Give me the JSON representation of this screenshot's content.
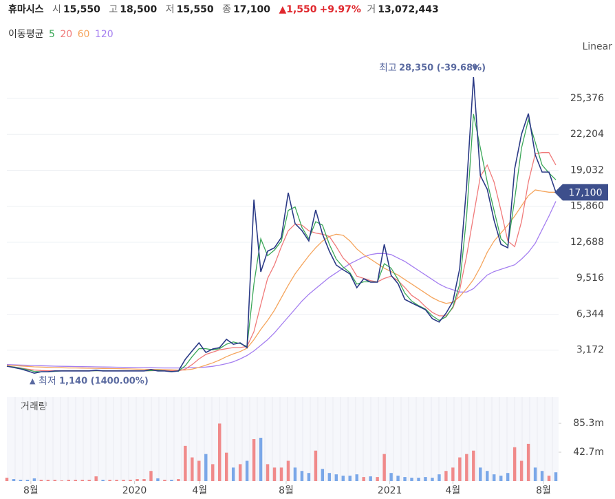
{
  "header": {
    "name": "휴마시스",
    "items": [
      {
        "label": "시",
        "value": "15,550"
      },
      {
        "label": "고",
        "value": "18,500"
      },
      {
        "label": "저",
        "value": "15,550"
      },
      {
        "label": "종",
        "value": "17,100"
      }
    ],
    "change": "▲1,550",
    "change_pct": "+9.97%",
    "volume_label": "거",
    "volume": "13,072,443"
  },
  "chart_data": [
    {
      "type": "line",
      "ma_legend_title": "이동평균",
      "scale_label": "Linear",
      "xlim": [
        0,
        80
      ],
      "xticks": [
        {
          "value": 3.5,
          "label": "8월"
        },
        {
          "value": 18.6,
          "label": "2020"
        },
        {
          "value": 28.1,
          "label": "4월"
        },
        {
          "value": 40.7,
          "label": "8월"
        },
        {
          "value": 55.8,
          "label": "2021"
        },
        {
          "value": 65,
          "label": "4월"
        },
        {
          "value": 78.2,
          "label": "8월"
        }
      ],
      "ylim": [
        0,
        29200
      ],
      "yticks": [
        {
          "value": 3172,
          "label": "3,172"
        },
        {
          "value": 6344,
          "label": "6,344"
        },
        {
          "value": 9516,
          "label": "9,516"
        },
        {
          "value": 12688,
          "label": "12,688"
        },
        {
          "value": 15860,
          "label": "15,860"
        },
        {
          "value": 19032,
          "label": "19,032"
        },
        {
          "value": 22204,
          "label": "22,204"
        },
        {
          "value": 25376,
          "label": "25,376"
        }
      ],
      "grid": true,
      "high_label": "최고",
      "high_text": "28,350 (-39.68%)",
      "high_marker": "▼",
      "low_marker": "▲",
      "low_label": "최저",
      "low_text": "1,140 (1400.00%)",
      "last_value_label": "17,100",
      "series": [
        {
          "color": "#2b3a86",
          "values": [
            1760,
            1640,
            1520,
            1340,
            1140,
            1270,
            1270,
            1340,
            1340,
            1340,
            1340,
            1340,
            1340,
            1400,
            1340,
            1340,
            1340,
            1340,
            1340,
            1340,
            1340,
            1460,
            1340,
            1340,
            1270,
            1340,
            2370,
            3100,
            3820,
            2970,
            3280,
            3400,
            4130,
            3700,
            3820,
            3400,
            16450,
            10080,
            11900,
            12200,
            13110,
            17060,
            14330,
            13720,
            12810,
            15540,
            13410,
            11900,
            10680,
            10260,
            9890,
            8680,
            9470,
            9170,
            9170,
            12500,
            9770,
            9040,
            7650,
            7340,
            7040,
            6740,
            5950,
            5650,
            6430,
            7470,
            10380,
            17660,
            27250,
            18570,
            17360,
            14630,
            12500,
            12200,
            19180,
            22220,
            24040,
            20400,
            18880,
            18880,
            17100
          ]
        },
        {
          "name": "5",
          "color": "#3aa757",
          "values": [
            1760,
            1680,
            1580,
            1440,
            1300,
            1260,
            1270,
            1300,
            1340,
            1340,
            1340,
            1340,
            1340,
            1360,
            1360,
            1340,
            1340,
            1340,
            1340,
            1340,
            1340,
            1380,
            1400,
            1340,
            1300,
            1320,
            1800,
            2600,
            3300,
            3300,
            3200,
            3300,
            3700,
            3900,
            3750,
            3500,
            9000,
            13000,
            11500,
            12000,
            12800,
            15500,
            15800,
            14000,
            13000,
            14500,
            14200,
            12500,
            11200,
            10500,
            10000,
            9000,
            9200,
            9200,
            9200,
            10800,
            10400,
            9400,
            8200,
            7500,
            7100,
            6800,
            6200,
            5800,
            6100,
            7000,
            9000,
            15000,
            24000,
            21000,
            18000,
            15500,
            13000,
            12400,
            16500,
            21000,
            23500,
            21500,
            19500,
            18800,
            18200
          ]
        },
        {
          "name": "20",
          "color": "#f07a7a",
          "values": [
            1760,
            1700,
            1600,
            1500,
            1420,
            1380,
            1360,
            1350,
            1350,
            1350,
            1350,
            1350,
            1350,
            1360,
            1360,
            1360,
            1350,
            1350,
            1350,
            1350,
            1350,
            1360,
            1380,
            1380,
            1360,
            1350,
            1500,
            1900,
            2400,
            2800,
            3000,
            3200,
            3300,
            3400,
            3400,
            3500,
            4800,
            7200,
            9500,
            10700,
            12300,
            13700,
            14300,
            14200,
            13700,
            13500,
            13400,
            13200,
            12300,
            11300,
            10700,
            9700,
            9500,
            9300,
            9200,
            9500,
            9700,
            9300,
            8700,
            8000,
            7600,
            7000,
            6500,
            6200,
            6200,
            6900,
            8500,
            11500,
            15000,
            18500,
            19500,
            18000,
            15500,
            12800,
            12300,
            14500,
            18000,
            20500,
            20600,
            20600,
            19500
          ]
        },
        {
          "name": "60",
          "color": "#f5a55d",
          "values": [
            1850,
            1820,
            1780,
            1740,
            1700,
            1680,
            1650,
            1630,
            1620,
            1600,
            1600,
            1590,
            1580,
            1570,
            1560,
            1550,
            1540,
            1530,
            1520,
            1500,
            1490,
            1480,
            1470,
            1460,
            1440,
            1420,
            1420,
            1500,
            1650,
            1850,
            2050,
            2300,
            2600,
            2850,
            3050,
            3350,
            4100,
            5000,
            5800,
            6700,
            7800,
            8900,
            9900,
            10700,
            11500,
            12200,
            12800,
            13200,
            13400,
            13300,
            12800,
            12100,
            11600,
            11200,
            10800,
            10400,
            10100,
            9800,
            9400,
            9000,
            8600,
            8200,
            7800,
            7500,
            7300,
            7400,
            7900,
            8600,
            9400,
            10500,
            11800,
            12800,
            13500,
            14200,
            15000,
            15900,
            16800,
            17300,
            17200,
            17100,
            17100
          ]
        },
        {
          "name": "120",
          "color": "#a47ef0",
          "values": [
            1900,
            1880,
            1860,
            1840,
            1820,
            1800,
            1780,
            1760,
            1750,
            1740,
            1730,
            1720,
            1710,
            1700,
            1690,
            1680,
            1670,
            1660,
            1650,
            1640,
            1630,
            1620,
            1610,
            1600,
            1600,
            1600,
            1610,
            1620,
            1640,
            1680,
            1750,
            1850,
            1980,
            2150,
            2400,
            2700,
            3100,
            3600,
            4100,
            4700,
            5400,
            6100,
            6800,
            7500,
            8100,
            8600,
            9100,
            9600,
            10000,
            10400,
            10800,
            11100,
            11400,
            11600,
            11700,
            11700,
            11600,
            11300,
            11000,
            10600,
            10200,
            9800,
            9400,
            9000,
            8700,
            8500,
            8300,
            8300,
            8600,
            9200,
            9800,
            10100,
            10300,
            10500,
            10700,
            11200,
            11800,
            12600,
            13800,
            15000,
            16300
          ]
        }
      ]
    },
    {
      "type": "bar",
      "title": "거래량",
      "up_color": "#f08a8a",
      "down_color": "#7aa7e8",
      "ylim": [
        0,
        124
      ],
      "yticks": [
        {
          "value": 42.7,
          "label": "42.7m"
        },
        {
          "value": 85.3,
          "label": "85.3m"
        }
      ],
      "values": [
        5,
        3,
        2,
        2,
        4,
        2,
        2,
        2,
        1,
        2,
        2,
        2,
        2,
        7,
        2,
        2,
        2,
        2,
        2,
        3,
        3,
        15,
        4,
        2,
        2,
        3,
        52,
        35,
        30,
        40,
        25,
        85,
        42,
        20,
        25,
        30,
        62,
        64,
        25,
        20,
        20,
        30,
        20,
        15,
        12,
        45,
        18,
        12,
        10,
        8,
        8,
        10,
        6,
        7,
        6,
        40,
        12,
        8,
        6,
        5,
        5,
        6,
        5,
        10,
        15,
        20,
        35,
        40,
        45,
        20,
        15,
        10,
        8,
        12,
        50,
        30,
        55,
        20,
        15,
        8,
        13
      ]
    }
  ]
}
